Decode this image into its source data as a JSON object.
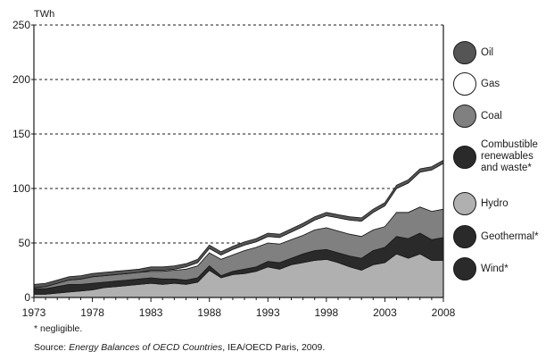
{
  "chart_data": {
    "type": "area",
    "stacked": true,
    "y_unit": "TWh",
    "ylim": [
      0,
      250
    ],
    "y_ticks": [
      0,
      50,
      100,
      150,
      200,
      250
    ],
    "x_ticks": [
      1973,
      1978,
      1983,
      1988,
      1993,
      1998,
      2003,
      2008
    ],
    "x": [
      1973,
      1974,
      1975,
      1976,
      1977,
      1978,
      1979,
      1980,
      1981,
      1982,
      1983,
      1984,
      1985,
      1986,
      1987,
      1988,
      1989,
      1990,
      1991,
      1992,
      1993,
      1994,
      1995,
      1996,
      1997,
      1998,
      1999,
      2000,
      2001,
      2002,
      2003,
      2004,
      2005,
      2006,
      2007,
      2008
    ],
    "grid": "dashed horizontal",
    "legend_position": "right",
    "series": [
      {
        "name": "Oil",
        "color": "#555555",
        "values": [
          3,
          3,
          3,
          3,
          3,
          3,
          3,
          3,
          3,
          3,
          3,
          3,
          3,
          3,
          3,
          3,
          3,
          3,
          3,
          3,
          3,
          3,
          3,
          3,
          3,
          3,
          3,
          3,
          3,
          3,
          3,
          3,
          3,
          3,
          3,
          3
        ]
      },
      {
        "name": "Gas",
        "color": "#ffffff",
        "values": [
          0,
          0,
          0,
          0,
          0,
          0,
          0,
          0,
          0,
          0,
          1,
          1,
          1,
          2,
          3,
          4,
          4,
          5,
          5,
          5,
          6,
          6,
          7,
          8,
          9,
          11,
          12,
          13,
          14,
          16,
          19,
          22,
          27,
          32,
          38,
          42
        ]
      },
      {
        "name": "Coal",
        "color": "#808080",
        "values": [
          1,
          2,
          3,
          4,
          5,
          6,
          6,
          6,
          6,
          6,
          6,
          7,
          8,
          10,
          11,
          12,
          15,
          15,
          17,
          18,
          17,
          17,
          17,
          17,
          19,
          20,
          20,
          20,
          20,
          19,
          19,
          22,
          24,
          24,
          26,
          26
        ]
      },
      {
        "name": "Combustible renewables and waste*",
        "color": "#2a2a2a",
        "values": [
          5,
          5,
          6,
          7,
          6,
          6,
          5,
          5,
          5,
          5,
          5,
          5,
          4,
          4,
          4,
          4,
          2,
          3,
          4,
          4,
          5,
          6,
          6,
          8,
          9,
          9,
          9,
          10,
          11,
          13,
          14,
          16,
          18,
          19,
          19,
          21
        ]
      },
      {
        "name": "Hydro",
        "color": "#b0b0b0",
        "values": [
          3,
          3,
          4,
          5,
          6,
          7,
          9,
          10,
          11,
          12,
          13,
          12,
          13,
          12,
          14,
          25,
          18,
          21,
          22,
          24,
          28,
          26,
          30,
          32,
          34,
          35,
          32,
          28,
          25,
          30,
          32,
          40,
          36,
          40,
          34,
          34
        ]
      },
      {
        "name": "Geothermal*",
        "color": "#2a2a2a",
        "values": [
          0,
          0,
          0,
          0,
          0,
          0,
          0,
          0,
          0,
          0,
          0,
          0,
          0,
          0,
          0,
          0,
          0,
          0,
          0,
          0,
          0,
          0,
          0,
          0,
          0,
          0,
          0,
          0,
          0,
          0,
          0,
          0,
          0,
          0,
          0,
          0
        ]
      },
      {
        "name": "Wind*",
        "color": "#2a2a2a",
        "values": [
          0,
          0,
          0,
          0,
          0,
          0,
          0,
          0,
          0,
          0,
          0,
          0,
          0,
          0,
          0,
          0,
          0,
          0,
          0,
          0,
          0,
          0,
          0,
          0,
          0,
          0,
          0,
          0,
          0,
          0,
          0,
          0,
          0,
          0,
          0,
          0
        ]
      }
    ]
  },
  "legend": [
    {
      "label": "Oil",
      "color": "#555555"
    },
    {
      "label": "Gas",
      "color": "#ffffff"
    },
    {
      "label": "Coal",
      "color": "#808080"
    },
    {
      "label": "Combustible\nrenewables\nand waste*",
      "color": "#2a2a2a"
    },
    {
      "label": "Hydro",
      "color": "#b0b0b0"
    },
    {
      "label": "Geothermal*",
      "color": "#2a2a2a"
    },
    {
      "label": "Wind*",
      "color": "#2a2a2a"
    }
  ],
  "footnote": "* negligible.",
  "source_prefix": "Source:",
  "source_title": "Energy Balances of OECD Countries",
  "source_suffix": ", IEA/OECD Paris, 2009."
}
